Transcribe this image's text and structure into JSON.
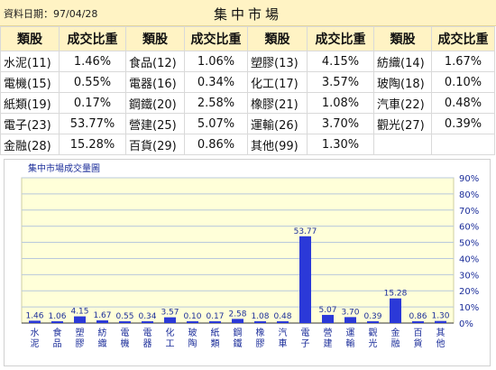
{
  "header": {
    "date_label": "資料日期：97/04/28",
    "title": "集中市場"
  },
  "table": {
    "columns": [
      "類股",
      "成交比重",
      "類股",
      "成交比重",
      "類股",
      "成交比重",
      "類股",
      "成交比重"
    ],
    "rows": [
      [
        "水泥(11)",
        "1.46%",
        "食品(12)",
        "1.06%",
        "塑膠(13)",
        "4.15%",
        "紡織(14)",
        "1.67%"
      ],
      [
        "電機(15)",
        "0.55%",
        "電器(16)",
        "0.34%",
        "化工(17)",
        "3.57%",
        "玻陶(18)",
        "0.10%"
      ],
      [
        "紙類(19)",
        "0.17%",
        "鋼鐵(20)",
        "2.58%",
        "橡膠(21)",
        "1.08%",
        "汽車(22)",
        "0.48%"
      ],
      [
        "電子(23)",
        "53.77%",
        "營建(25)",
        "5.07%",
        "運輸(26)",
        "3.70%",
        "觀光(27)",
        "0.39%"
      ],
      [
        "金融(28)",
        "15.28%",
        "百貨(29)",
        "0.86%",
        "其他(99)",
        "1.30%",
        "",
        ""
      ]
    ]
  },
  "chart_data": {
    "type": "bar",
    "title": "集中市場成交量圖",
    "categories": [
      "水泥",
      "食品",
      "塑膠",
      "紡織",
      "電機",
      "電器",
      "化工",
      "玻陶",
      "紙類",
      "鋼鐵",
      "橡膠",
      "汽車",
      "電子",
      "營建",
      "運輸",
      "觀光",
      "金融",
      "百貨",
      "其他"
    ],
    "values": [
      1.46,
      1.06,
      4.15,
      1.67,
      0.55,
      0.34,
      3.57,
      0.1,
      0.17,
      2.58,
      1.08,
      0.48,
      53.77,
      5.07,
      3.7,
      0.39,
      15.28,
      0.86,
      1.3
    ],
    "value_labels": [
      "1.46",
      "1.06",
      "4.15",
      "1.67",
      "0.55",
      "0.34",
      "3.57",
      "0.10",
      "0.17",
      "2.58",
      "1.08",
      "0.48",
      "53.77",
      "5.07",
      "3.70",
      "0.39",
      "15.28",
      "0.86",
      "1.30"
    ],
    "ylim": [
      0,
      90
    ],
    "yticks": [
      "0%",
      "10%",
      "20%",
      "30%",
      "40%",
      "50%",
      "60%",
      "70%",
      "80%",
      "90%"
    ],
    "ytick_values": [
      0,
      10,
      20,
      30,
      40,
      50,
      60,
      70,
      80,
      90
    ],
    "grid": true,
    "colors": {
      "bar": "#2b39d8",
      "plot_bg": "#ffffd9",
      "grid": "#b8c8dc",
      "text": "#1c2e9a",
      "axis": "#333333"
    }
  }
}
